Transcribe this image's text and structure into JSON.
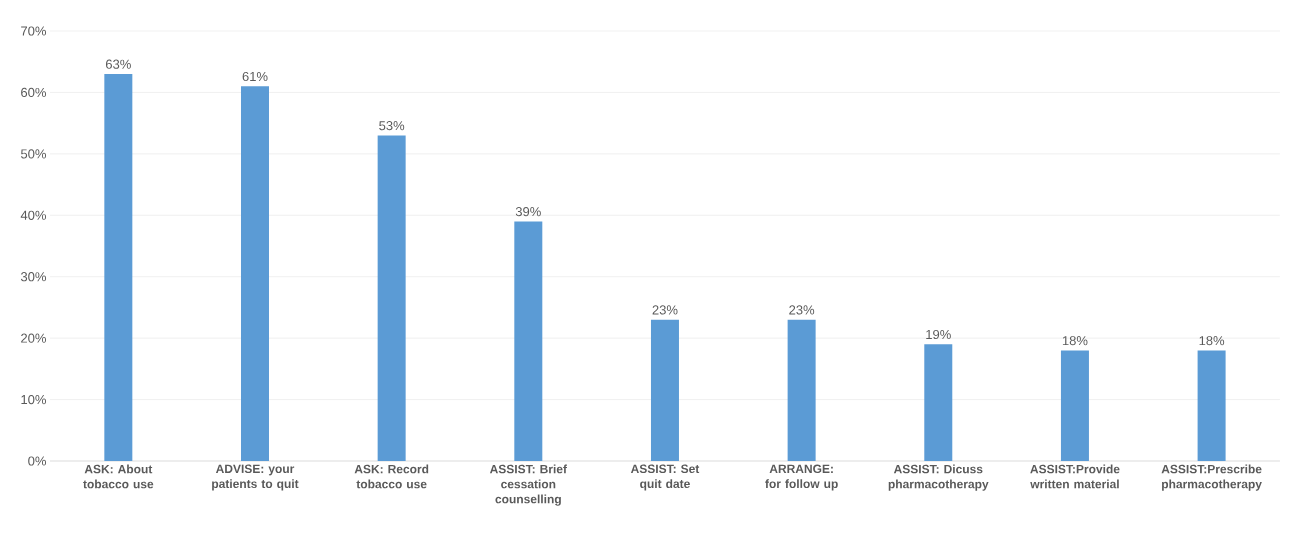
{
  "chart_data": {
    "type": "bar",
    "categories": [
      "ASK: About tobacco use",
      "ADVISE: your patients to quit",
      "ASK: Record tobacco use",
      "ASSIST: Brief cessation counselling",
      "ASSIST: Set quit date",
      "ARRANGE: for follow up",
      "ASSIST: Dicuss pharmacotherapy",
      "ASSIST:Provide written material",
      "ASSIST:Prescribe pharmacotherapy"
    ],
    "values": [
      63,
      61,
      53,
      39,
      23,
      23,
      19,
      18,
      18
    ],
    "value_labels": [
      "63%",
      "61%",
      "53%",
      "39%",
      "23%",
      "23%",
      "19%",
      "18%",
      "18%"
    ],
    "color": "#5b9bd5",
    "ylim": [
      0,
      70
    ],
    "yticks": [
      {
        "value": 0,
        "label": "0%"
      },
      {
        "value": 10,
        "label": "10%"
      },
      {
        "value": 20,
        "label": "20%"
      },
      {
        "value": 30,
        "label": "30%"
      },
      {
        "value": 40,
        "label": "40%"
      },
      {
        "value": 50,
        "label": "50%"
      },
      {
        "value": 60,
        "label": "60%"
      },
      {
        "value": 70,
        "label": "70%"
      }
    ],
    "grid": "y"
  }
}
